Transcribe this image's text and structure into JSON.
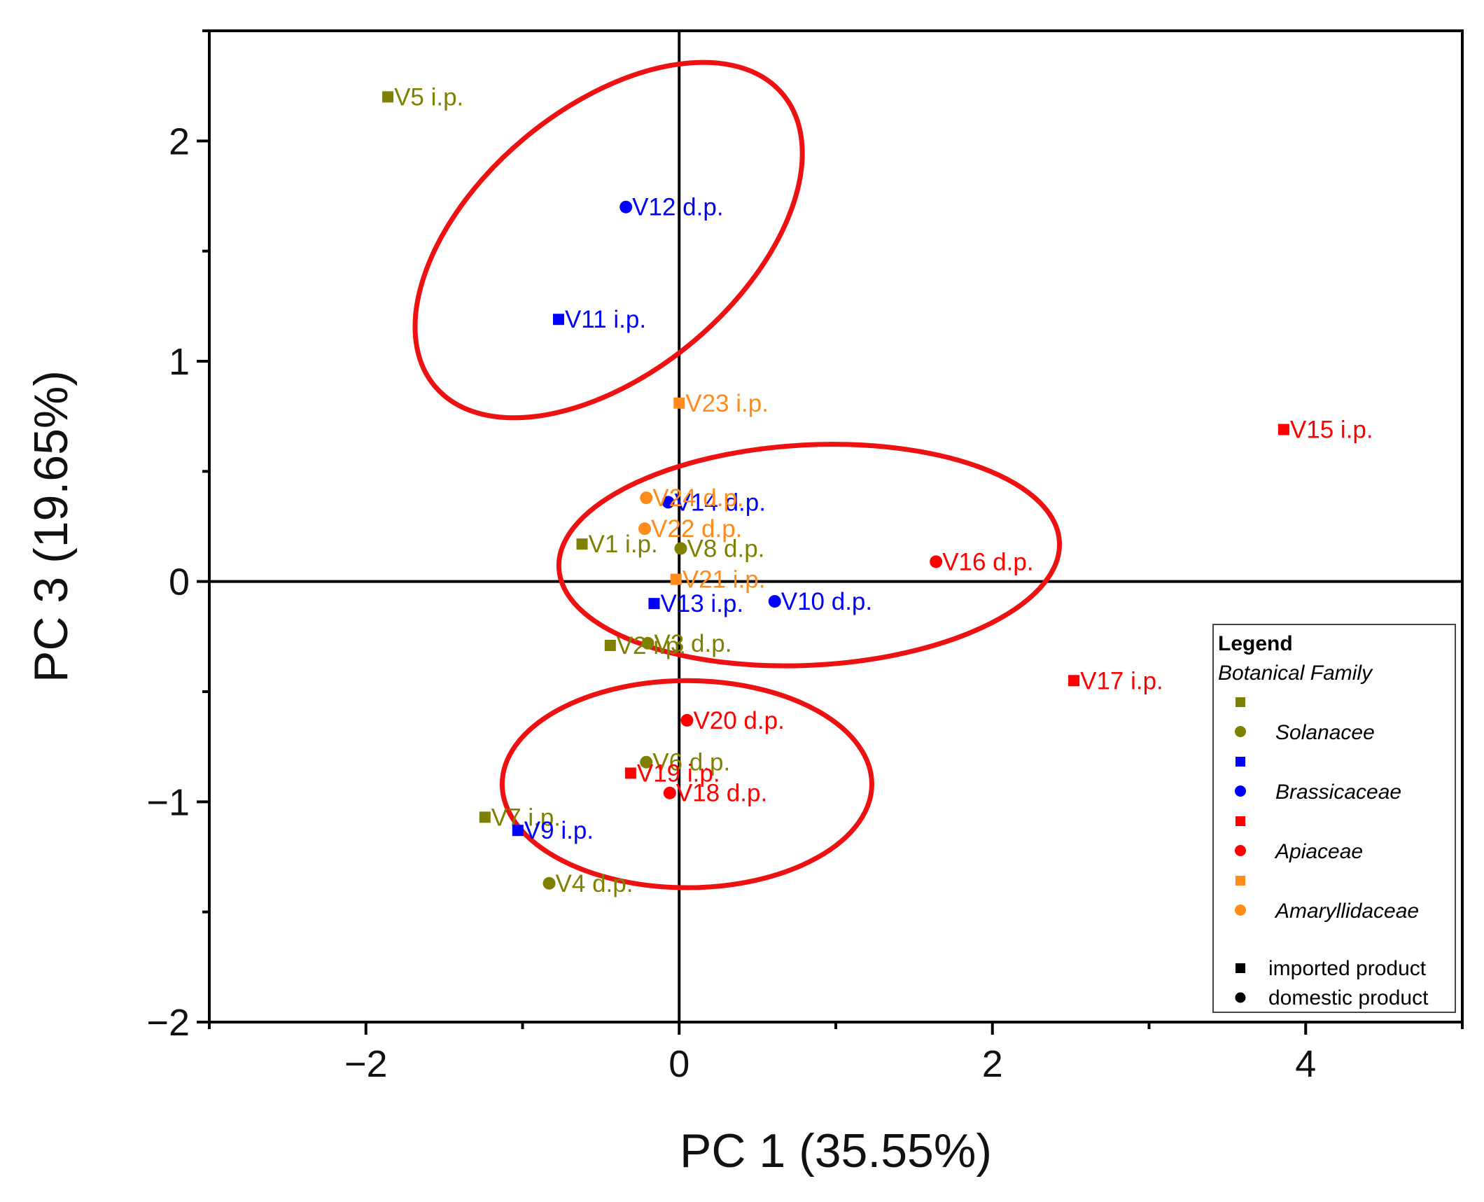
{
  "chart_data": {
    "type": "scatter",
    "title": "",
    "xlabel": "PC 1 (35.55%)",
    "ylabel": "PC 3 (19.65%)",
    "xlim": [
      -3,
      5
    ],
    "ylim": [
      -2,
      2.5
    ],
    "x_ticks": [
      -2,
      0,
      2,
      4
    ],
    "y_ticks": [
      -2,
      -1,
      0,
      1,
      2
    ],
    "x_tick_labels": [
      "−2",
      "0",
      "2",
      "4"
    ],
    "y_tick_labels": [
      "−2",
      "−1",
      "0",
      "1",
      "2"
    ],
    "grid": false,
    "zero_lines": true,
    "families": [
      {
        "name": "Solanacee",
        "color": "#808000"
      },
      {
        "name": "Brassicaceae",
        "color": "#0000ff"
      },
      {
        "name": "Apiaceae",
        "color": "#ff0000"
      },
      {
        "name": "Amaryllidaceae",
        "color": "#ff8c1a"
      }
    ],
    "points": [
      {
        "label": "V1 i.p.",
        "x": -0.62,
        "y": 0.17,
        "family": "Solanacee",
        "origin": "imported"
      },
      {
        "label": "V2 i.p.",
        "x": -0.44,
        "y": -0.29,
        "family": "Solanacee",
        "origin": "imported"
      },
      {
        "label": "V3 d.p.",
        "x": -0.2,
        "y": -0.28,
        "family": "Solanacee",
        "origin": "domestic"
      },
      {
        "label": "V4 d.p.",
        "x": -0.83,
        "y": -1.37,
        "family": "Solanacee",
        "origin": "domestic"
      },
      {
        "label": "V5 i.p.",
        "x": -1.86,
        "y": 2.2,
        "family": "Solanacee",
        "origin": "imported"
      },
      {
        "label": "V6 d.p.",
        "x": -0.21,
        "y": -0.82,
        "family": "Solanacee",
        "origin": "domestic"
      },
      {
        "label": "V7 i.p.",
        "x": -1.24,
        "y": -1.07,
        "family": "Solanacee",
        "origin": "imported"
      },
      {
        "label": "V8 d.p.",
        "x": 0.01,
        "y": 0.15,
        "family": "Solanacee",
        "origin": "domestic"
      },
      {
        "label": "V9 i.p.",
        "x": -1.03,
        "y": -1.13,
        "family": "Brassicaceae",
        "origin": "imported"
      },
      {
        "label": "V10 d.p.",
        "x": 0.61,
        "y": -0.09,
        "family": "Brassicaceae",
        "origin": "domestic"
      },
      {
        "label": "V11 i.p.",
        "x": -0.77,
        "y": 1.19,
        "family": "Brassicaceae",
        "origin": "imported"
      },
      {
        "label": "V12 d.p.",
        "x": -0.34,
        "y": 1.7,
        "family": "Brassicaceae",
        "origin": "domestic"
      },
      {
        "label": "V13 i.p.",
        "x": -0.16,
        "y": -0.1,
        "family": "Brassicaceae",
        "origin": "imported"
      },
      {
        "label": "V14 d.p.",
        "x": -0.07,
        "y": 0.36,
        "family": "Brassicaceae",
        "origin": "domestic"
      },
      {
        "label": "V15 i.p.",
        "x": 3.86,
        "y": 0.69,
        "family": "Apiaceae",
        "origin": "imported"
      },
      {
        "label": "V16 d.p.",
        "x": 1.64,
        "y": 0.09,
        "family": "Apiaceae",
        "origin": "domestic"
      },
      {
        "label": "V17 i.p.",
        "x": 2.52,
        "y": -0.45,
        "family": "Apiaceae",
        "origin": "imported"
      },
      {
        "label": "V18 d.p.",
        "x": -0.06,
        "y": -0.96,
        "family": "Apiaceae",
        "origin": "domestic"
      },
      {
        "label": "V19 i.p.",
        "x": -0.31,
        "y": -0.87,
        "family": "Apiaceae",
        "origin": "imported"
      },
      {
        "label": "V20 d.p.",
        "x": 0.05,
        "y": -0.63,
        "family": "Apiaceae",
        "origin": "domestic"
      },
      {
        "label": "V21 i.p.",
        "x": -0.02,
        "y": 0.01,
        "family": "Amaryllidaceae",
        "origin": "imported"
      },
      {
        "label": "V22 d.p.",
        "x": -0.22,
        "y": 0.24,
        "family": "Amaryllidaceae",
        "origin": "domestic"
      },
      {
        "label": "V23 i.p.",
        "x": 0.0,
        "y": 0.81,
        "family": "Amaryllidaceae",
        "origin": "imported"
      },
      {
        "label": "V24 d.p.",
        "x": -0.21,
        "y": 0.38,
        "family": "Amaryllidaceae",
        "origin": "domestic"
      }
    ],
    "cluster_ellipses": [
      {
        "cx": -0.45,
        "cy": 1.55,
        "rx": 1.45,
        "ry": 0.6,
        "rotation_deg": -40,
        "color": "#ee1111"
      },
      {
        "cx": 0.83,
        "cy": 0.12,
        "rx": 1.6,
        "ry": 0.5,
        "rotation_deg": -3,
        "color": "#ee1111"
      },
      {
        "cx": 0.05,
        "cy": -0.92,
        "rx": 1.18,
        "ry": 0.47,
        "rotation_deg": 0,
        "color": "#ee1111"
      }
    ],
    "legend": {
      "title": "Legend",
      "subtitle": "Botanical Family",
      "position": "bottom-right",
      "shape_entries": [
        {
          "label": "imported product",
          "shape": "square"
        },
        {
          "label": "domestic product",
          "shape": "circle"
        }
      ]
    }
  }
}
